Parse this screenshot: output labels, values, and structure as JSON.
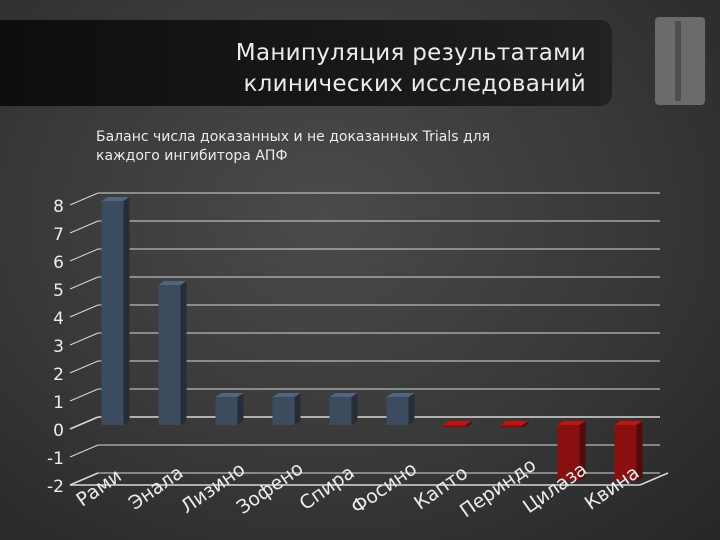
{
  "slide": {
    "title_lines": [
      "Манипуляция результатами",
      "клинических исследований"
    ],
    "subtitle_lines": [
      "Баланс числа доказанных и не доказанных Trials для",
      "каждого ингибитора АПФ"
    ]
  },
  "colors": {
    "positive_bar": "#3d4b5e",
    "negative_bar": "#8a1010",
    "grid": "#d8d8d8",
    "text": "#ececec"
  },
  "chart_data": {
    "type": "bar",
    "categories": [
      "Рами",
      "Энала",
      "Лизино",
      "Зофено",
      "Спира",
      "Фосино",
      "Капто",
      "Периндо",
      "Цилаза",
      "Квина"
    ],
    "values": [
      8,
      5,
      1,
      1,
      1,
      1,
      -0.1,
      -0.1,
      -2,
      -2
    ],
    "yticks": [
      "8",
      "7",
      "6",
      "5",
      "4",
      "3",
      "2",
      "1",
      "0",
      "-1",
      "-2"
    ],
    "ylim": [
      -2,
      8
    ],
    "grid": true,
    "bar_style": "3d"
  }
}
